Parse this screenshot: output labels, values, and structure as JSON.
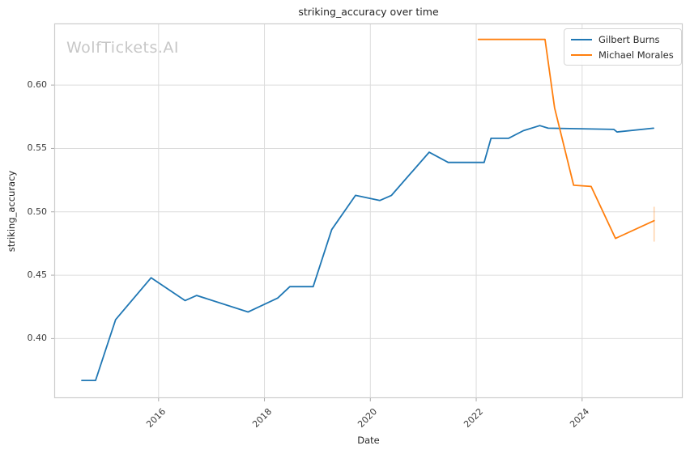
{
  "watermark": "WolfTickets.AI",
  "colors": {
    "series_blue": "#1f77b4",
    "series_orange": "#ff7f0e",
    "grid": "#dcdcdc",
    "spine": "#cccccc",
    "tick_mark": "#aaaaaa",
    "text": "#262626",
    "watermark_gray": "#c7c7c7"
  },
  "chart_data": {
    "type": "line",
    "title": "striking_accuracy over time",
    "xlabel": "Date",
    "ylabel": "striking_accuracy",
    "grid": true,
    "legend_position": "upper right",
    "xlim": [
      2014.03,
      2025.9
    ],
    "ylim": [
      0.353,
      0.6486
    ],
    "x_ticks": [
      "2016",
      "2018",
      "2020",
      "2022",
      "2024"
    ],
    "y_ticks": [
      "0.40",
      "0.45",
      "0.50",
      "0.55",
      "0.60"
    ],
    "series": [
      {
        "name": "Gilbert Burns",
        "color": "#1f77b4",
        "points": [
          [
            2014.55,
            0.367
          ],
          [
            2014.81,
            0.367
          ],
          [
            2015.19,
            0.415
          ],
          [
            2015.86,
            0.448
          ],
          [
            2016.5,
            0.43
          ],
          [
            2016.72,
            0.434
          ],
          [
            2017.69,
            0.421
          ],
          [
            2018.25,
            0.432
          ],
          [
            2018.48,
            0.441
          ],
          [
            2018.92,
            0.441
          ],
          [
            2019.27,
            0.486
          ],
          [
            2019.72,
            0.513
          ],
          [
            2020.18,
            0.509
          ],
          [
            2020.4,
            0.513
          ],
          [
            2021.11,
            0.547
          ],
          [
            2021.47,
            0.539
          ],
          [
            2022.15,
            0.539
          ],
          [
            2022.28,
            0.558
          ],
          [
            2022.61,
            0.558
          ],
          [
            2022.89,
            0.564
          ],
          [
            2023.2,
            0.568
          ],
          [
            2023.36,
            0.566
          ],
          [
            2024.6,
            0.565
          ],
          [
            2024.66,
            0.563
          ],
          [
            2025.35,
            0.566
          ]
        ]
      },
      {
        "name": "Michael Morales",
        "color": "#ff7f0e",
        "points": [
          [
            2022.04,
            0.636
          ],
          [
            2023.3,
            0.636
          ],
          [
            2023.48,
            0.582
          ],
          [
            2023.84,
            0.521
          ],
          [
            2024.17,
            0.52
          ],
          [
            2024.63,
            0.479
          ],
          [
            2025.36,
            0.493
          ]
        ],
        "end_marker": {
          "x": 2025.36,
          "y_low": 0.4765,
          "y_high": 0.504
        }
      }
    ]
  }
}
